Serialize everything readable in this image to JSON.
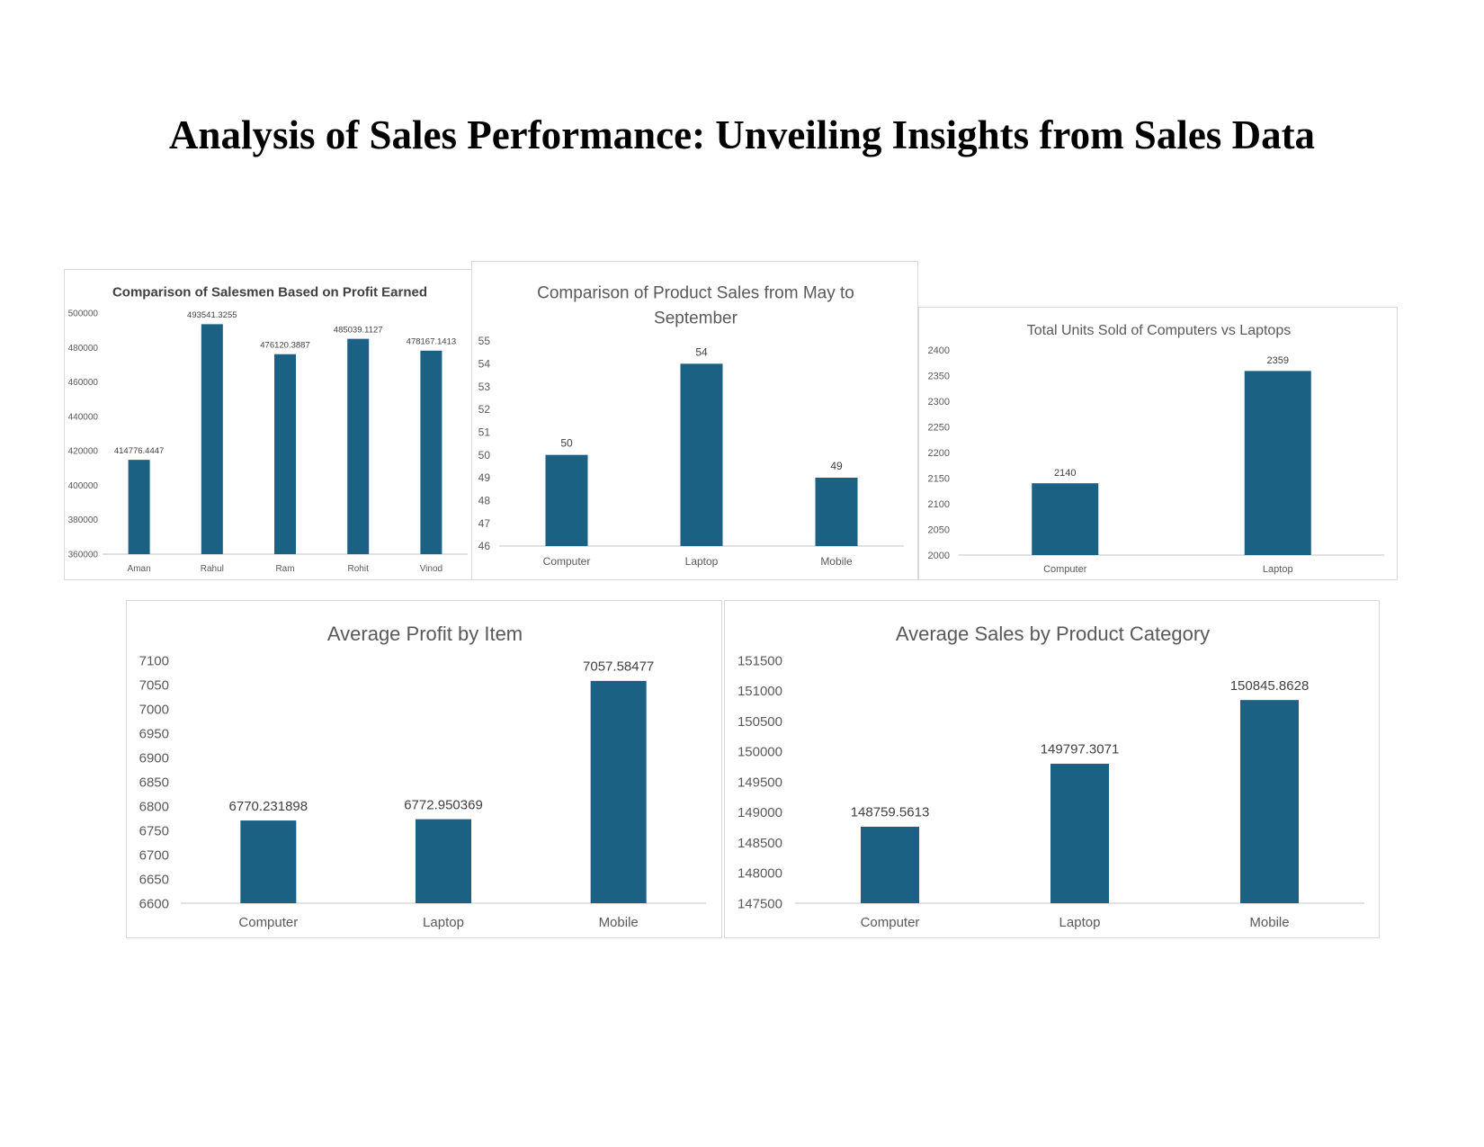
{
  "page": {
    "title": "Analysis of Sales Performance: Unveiling Insights from Sales Data"
  },
  "colors": {
    "bar": "#1a6184",
    "axis": "#d9d9d9",
    "title_dark": "#404040",
    "title_light": "#595959",
    "tick": "#595959"
  },
  "chart_data": [
    {
      "type": "bar",
      "title_lines": [
        "Comparison of Salesmen Based on Profit Earned"
      ],
      "categories": [
        "Aman",
        "Rahul",
        "Ram",
        "Rohit",
        "Vinod"
      ],
      "values": [
        414776.4447,
        493541.3255,
        476120.3887,
        485039.1127,
        478167.1413
      ],
      "value_labels": [
        "414776.4447",
        "493541.3255",
        "476120.3887",
        "485039.1127",
        "478167.1413"
      ],
      "yticks": [
        "360000",
        "380000",
        "400000",
        "420000",
        "440000",
        "460000",
        "480000",
        "500000"
      ],
      "ylim": [
        360000,
        500000
      ],
      "xlabel": "",
      "ylabel": "",
      "grid": false,
      "legend": "none"
    },
    {
      "type": "bar",
      "title_lines": [
        "Comparison of Product Sales from May to",
        "September"
      ],
      "categories": [
        "Computer",
        "Laptop",
        "Mobile"
      ],
      "values": [
        50,
        54,
        49
      ],
      "value_labels": [
        "50",
        "54",
        "49"
      ],
      "yticks": [
        "46",
        "47",
        "48",
        "49",
        "50",
        "51",
        "52",
        "53",
        "54",
        "55"
      ],
      "ylim": [
        46,
        55
      ],
      "xlabel": "",
      "ylabel": "",
      "grid": false,
      "legend": "none"
    },
    {
      "type": "bar",
      "title_lines": [
        "Total Units Sold of Computers vs Laptops"
      ],
      "categories": [
        "Computer",
        "Laptop"
      ],
      "values": [
        2140,
        2359
      ],
      "value_labels": [
        "2140",
        "2359"
      ],
      "yticks": [
        "2000",
        "2050",
        "2100",
        "2150",
        "2200",
        "2250",
        "2300",
        "2350",
        "2400"
      ],
      "ylim": [
        2000,
        2400
      ],
      "xlabel": "",
      "ylabel": "",
      "grid": false,
      "legend": "none"
    },
    {
      "type": "bar",
      "title_lines": [
        "Average Profit by Item"
      ],
      "categories": [
        "Computer",
        "Laptop",
        "Mobile"
      ],
      "values": [
        6770.231898,
        6772.950369,
        7057.58477
      ],
      "value_labels": [
        "6770.231898",
        "6772.950369",
        "7057.58477"
      ],
      "yticks": [
        "6600",
        "6650",
        "6700",
        "6750",
        "6800",
        "6850",
        "6900",
        "6950",
        "7000",
        "7050",
        "7100"
      ],
      "ylim": [
        6600,
        7100
      ],
      "xlabel": "",
      "ylabel": "",
      "grid": false,
      "legend": "none"
    },
    {
      "type": "bar",
      "title_lines": [
        "Average Sales by Product Category"
      ],
      "categories": [
        "Computer",
        "Laptop",
        "Mobile"
      ],
      "values": [
        148759.5613,
        149797.3071,
        150845.8628
      ],
      "value_labels": [
        "148759.5613",
        "149797.3071",
        "150845.8628"
      ],
      "yticks": [
        "147500",
        "148000",
        "148500",
        "149000",
        "149500",
        "150000",
        "150500",
        "151000",
        "151500"
      ],
      "ylim": [
        147500,
        151500
      ],
      "xlabel": "",
      "ylabel": "",
      "grid": false,
      "legend": "none"
    }
  ]
}
